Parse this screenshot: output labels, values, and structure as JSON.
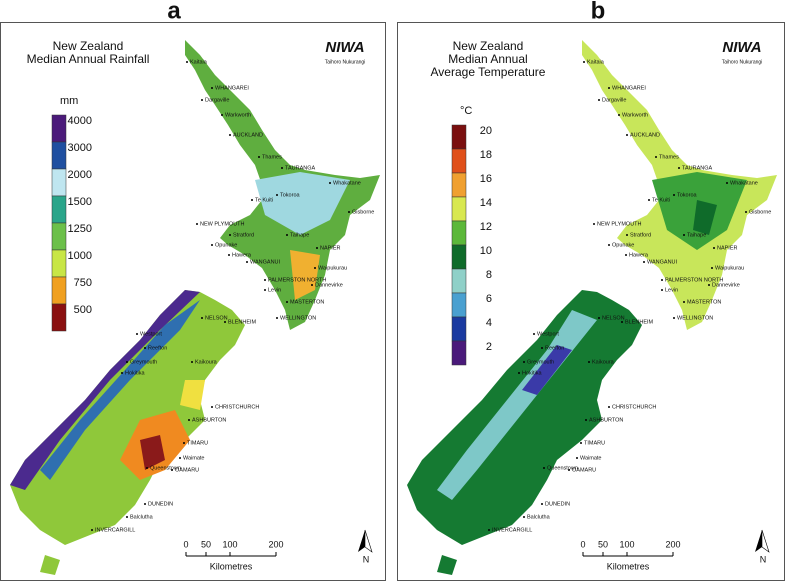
{
  "panels": [
    {
      "label": "a",
      "title": [
        "New Zealand",
        "Median Annual Rainfall"
      ],
      "unit": "mm",
      "legend": [
        "4000",
        "3000",
        "2000",
        "1500",
        "1250",
        "1000",
        "750",
        "500"
      ],
      "logo": "NIWA",
      "logo_sub": "Taihoro Nukurangi",
      "places": [
        "Kaitaia",
        "WHANGAREI",
        "Dargaville",
        "Warkworth",
        "AUCKLAND",
        "Thames",
        "TAURANGA",
        "Whakatane",
        "Tokoroa",
        "Te Kuiti",
        "Gisborne",
        "NEW PLYMOUTH",
        "Stratford",
        "Opunake",
        "Hawera",
        "WANGANUI",
        "NAPIER",
        "Taihape",
        "Waipukurau",
        "PALMERSTON NORTH",
        "Dannevirke",
        "Levin",
        "MASTERTON",
        "WELLINGTON",
        "BLENHEIM",
        "NELSON",
        "Westport",
        "Reefton",
        "Greymouth",
        "Hokitika",
        "Kaikoura",
        "CHRISTCHURCH",
        "ASHBURTON",
        "TIMARU",
        "Waimate",
        "OAMARU",
        "Queenstown",
        "DUNEDIN",
        "Balclutha",
        "INVERCARGILL"
      ],
      "scale": [
        "0",
        "50",
        "100",
        "200"
      ],
      "scale_unit": "Kilometres",
      "north": "N"
    },
    {
      "label": "b",
      "title": [
        "New Zealand",
        "Median Annual",
        "Average Temperature"
      ],
      "unit": "°C",
      "legend": [
        "20",
        "18",
        "16",
        "14",
        "12",
        "10",
        "8",
        "6",
        "4",
        "2"
      ],
      "logo": "NIWA",
      "logo_sub": "Taihoro Nukurangi",
      "places": [
        "Kaitaia",
        "WHANGAREI",
        "Dargaville",
        "Warkworth",
        "AUCKLAND",
        "Thames",
        "TAURANGA",
        "Whakatane",
        "Tokoroa",
        "Te Kuiti",
        "Gisborne",
        "NEW PLYMOUTH",
        "Stratford",
        "Opunake",
        "Hawera",
        "WANGANUI",
        "NAPIER",
        "Taihape",
        "Waipukurau",
        "PALMERSTON NORTH",
        "Dannevirke",
        "Levin",
        "MASTERTON",
        "WELLINGTON",
        "BLENHEIM",
        "NELSON",
        "Westport",
        "Reefton",
        "Greymouth",
        "Hokitika",
        "Kaikoura",
        "CHRISTCHURCH",
        "ASHBURTON",
        "TIMARU",
        "Waimate",
        "OAMARU",
        "Queenstown",
        "DUNEDIN",
        "Balclutha",
        "INVERCARGILL"
      ],
      "scale": [
        "0",
        "50",
        "100",
        "200"
      ],
      "scale_unit": "Kilometres",
      "north": "N"
    }
  ]
}
